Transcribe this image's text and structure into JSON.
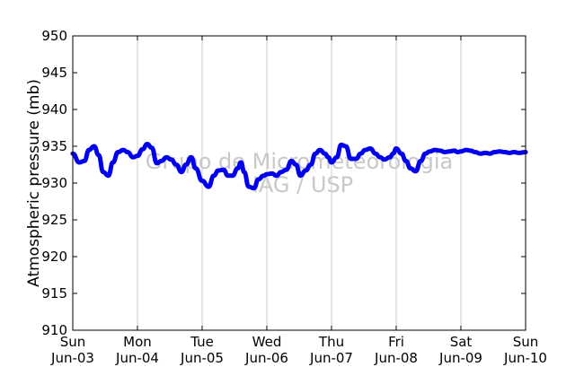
{
  "chart_data": {
    "type": "line",
    "ylabel": "Atmospheric pressure (mb)",
    "xlabel": "",
    "ylim": [
      910,
      950
    ],
    "yticks": [
      910,
      915,
      920,
      925,
      930,
      935,
      940,
      945,
      950
    ],
    "xlim": [
      0,
      7
    ],
    "xticks": [
      {
        "day": "Sun",
        "date": "Jun-03"
      },
      {
        "day": "Mon",
        "date": "Jun-04"
      },
      {
        "day": "Tue",
        "date": "Jun-05"
      },
      {
        "day": "Wed",
        "date": "Jun-06"
      },
      {
        "day": "Thu",
        "date": "Jun-07"
      },
      {
        "day": "Fri",
        "date": "Jun-08"
      },
      {
        "day": "Sat",
        "date": "Jun-09"
      },
      {
        "day": "Sun",
        "date": "Jun-10"
      }
    ],
    "grid": "vertical",
    "line_color": "#0000ee",
    "watermark": [
      "Grupo de Micrometeorologia",
      "IAG / USP"
    ],
    "series": [
      {
        "x": [
          0.0,
          0.1,
          0.18,
          0.25,
          0.33,
          0.4,
          0.47,
          0.55,
          0.62,
          0.7,
          0.78,
          0.85,
          0.93,
          1.0,
          1.08,
          1.15,
          1.22,
          1.3,
          1.37,
          1.45,
          1.52,
          1.6,
          1.68,
          1.75,
          1.83,
          1.9,
          2.0,
          2.1,
          2.18,
          2.25,
          2.33,
          2.4,
          2.47,
          2.55,
          2.6,
          2.65,
          2.72,
          2.8,
          2.87,
          2.95,
          3.0,
          3.08,
          3.15,
          3.22,
          3.3,
          3.38,
          3.45,
          3.52,
          3.6,
          3.68,
          3.75,
          3.82,
          3.9,
          3.95,
          4.0,
          4.08,
          4.15,
          4.22,
          4.3,
          4.38,
          4.45,
          4.52,
          4.6,
          4.68,
          4.75,
          4.82,
          4.9,
          4.95,
          5.0,
          5.08,
          5.15,
          5.22,
          5.3,
          5.38,
          5.45,
          5.52,
          5.6,
          5.68,
          5.75,
          5.82,
          5.9,
          5.95,
          6.0,
          6.08,
          6.15,
          6.22,
          6.3,
          6.38,
          6.45,
          6.52,
          6.6,
          6.68,
          6.75,
          6.82,
          6.9,
          7.0
        ],
        "y": [
          934.0,
          932.8,
          933.0,
          934.5,
          935.0,
          933.8,
          931.5,
          931.0,
          932.8,
          934.2,
          934.5,
          934.2,
          933.5,
          933.7,
          934.6,
          935.3,
          934.8,
          932.7,
          933.0,
          933.5,
          933.2,
          932.5,
          931.5,
          932.5,
          933.5,
          932.0,
          930.3,
          929.5,
          931.0,
          931.7,
          931.8,
          931.0,
          931.0,
          932.0,
          932.8,
          931.5,
          929.5,
          929.3,
          930.5,
          931.0,
          931.2,
          931.3,
          931.0,
          931.5,
          931.8,
          933.0,
          932.5,
          931.0,
          931.7,
          932.5,
          934.0,
          934.5,
          934.0,
          933.5,
          932.8,
          933.5,
          935.2,
          935.0,
          933.3,
          933.3,
          934.0,
          934.5,
          934.7,
          934.0,
          933.5,
          933.2,
          933.5,
          934.0,
          934.7,
          934.0,
          933.0,
          932.0,
          931.6,
          933.0,
          934.0,
          934.3,
          934.5,
          934.4,
          934.2,
          934.3,
          934.4,
          934.2,
          934.3,
          934.5,
          934.4,
          934.2,
          934.0,
          934.1,
          934.0,
          934.2,
          934.3,
          934.2,
          934.1,
          934.2,
          934.1,
          934.2
        ]
      }
    ]
  }
}
